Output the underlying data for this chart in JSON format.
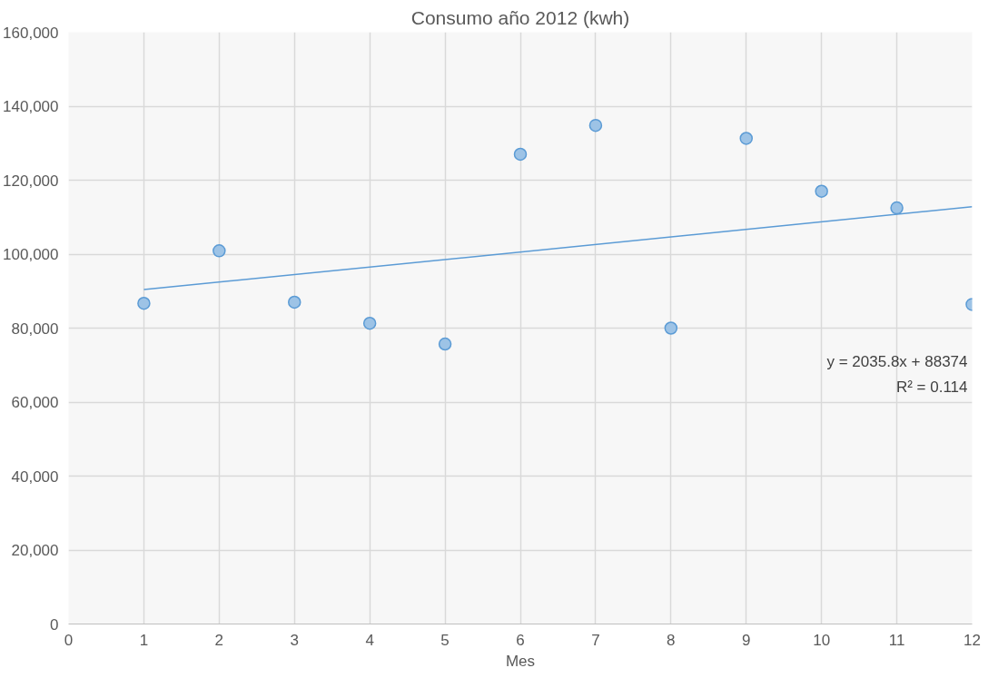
{
  "chart_data": {
    "type": "scatter",
    "title": "Consumo año 2012 (kwh)",
    "xlabel": "Mes",
    "x": [
      1,
      2,
      3,
      4,
      5,
      6,
      7,
      8,
      9,
      10,
      11,
      12
    ],
    "series": [
      {
        "color": "#9dc3e6",
        "values": [
          86700,
          100900,
          87000,
          81300,
          75700,
          127000,
          134800,
          80000,
          131300,
          117000,
          112500,
          86400
        ]
      },
      {
        "type": "line",
        "marker": "none",
        "color": "#5b9bd5",
        "x": [
          1,
          12
        ],
        "values": [
          90400,
          112800
        ]
      }
    ],
    "marker": "circle",
    "grid": true,
    "xlim": [
      0,
      12
    ],
    "xticks": [
      0,
      1,
      2,
      3,
      4,
      5,
      6,
      7,
      8,
      9,
      10,
      11,
      12
    ],
    "ylim": [
      0,
      160000
    ],
    "yticks": [
      {
        "value": 0,
        "label": "0"
      },
      {
        "value": 20000,
        "label": "20,000"
      },
      {
        "value": 40000,
        "label": "40,000"
      },
      {
        "value": 60000,
        "label": "60,000"
      },
      {
        "value": 80000,
        "label": "80,000"
      },
      {
        "value": 100000,
        "label": "100,000"
      },
      {
        "value": 120000,
        "label": "120,000"
      },
      {
        "value": 140000,
        "label": "140,000"
      },
      {
        "value": 160000,
        "label": "160,000"
      }
    ],
    "annotations": [
      "y = 2035.8x + 88374",
      "R² = 0.114"
    ]
  }
}
